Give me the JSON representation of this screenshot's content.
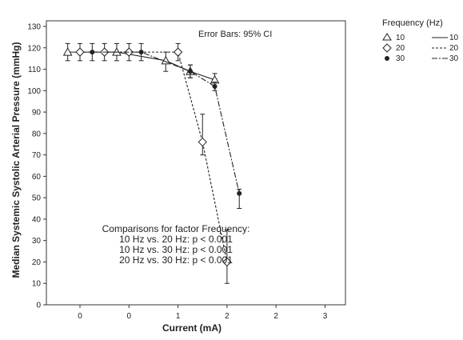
{
  "chart_data": {
    "type": "line",
    "ylabel": "Median Systemic Systolic Arterial Pressure (mmHg)",
    "xlabel": "Current (mA)",
    "x_tick_labels": [
      "0",
      "0",
      "1",
      "2",
      "2",
      "3"
    ],
    "y_ticks": [
      0,
      10,
      20,
      30,
      40,
      50,
      60,
      70,
      80,
      90,
      100,
      110,
      120,
      130
    ],
    "ylim": [
      0,
      135
    ],
    "error_bar_note": "Error Bars: 95% CI",
    "legend": {
      "title": "Frequency (Hz)",
      "placement": "top-right, outside plot",
      "entries": [
        "10",
        "20",
        "30"
      ]
    },
    "annotation_lines": [
      "Comparisons for factor Frequency:",
      "10 Hz vs. 20 Hz: p < 0.001",
      "10 Hz vs. 30 Hz: p < 0.001",
      "20 Hz vs. 30 Hz: p < 0.001"
    ],
    "series": [
      {
        "name": "10",
        "marker": "triangle",
        "line": "solid",
        "x": [
          -0.25,
          0.75,
          1.75,
          2.25,
          2.75
        ],
        "y": [
          118,
          118,
          114,
          109,
          105
        ],
        "err_low": [
          114,
          114,
          109,
          106,
          102
        ],
        "err_high": [
          122,
          122,
          118,
          112,
          108
        ]
      },
      {
        "name": "20",
        "marker": "diamond",
        "line": "dashed",
        "x": [
          0,
          0.5,
          1,
          2,
          2.5,
          3
        ],
        "y": [
          118,
          118,
          118,
          118,
          76,
          20
        ],
        "err_low": [
          114,
          114,
          114,
          114,
          70,
          10
        ],
        "err_high": [
          122,
          122,
          122,
          122,
          89,
          35
        ]
      },
      {
        "name": "30",
        "marker": "circle",
        "line": "long-dash",
        "x": [
          0.25,
          1.25,
          2.25,
          2.75,
          3.25
        ],
        "y": [
          118,
          118,
          109,
          102,
          52
        ],
        "err_low": [
          114,
          114,
          106,
          100,
          45
        ],
        "err_high": [
          122,
          122,
          112,
          104,
          54
        ]
      }
    ]
  }
}
